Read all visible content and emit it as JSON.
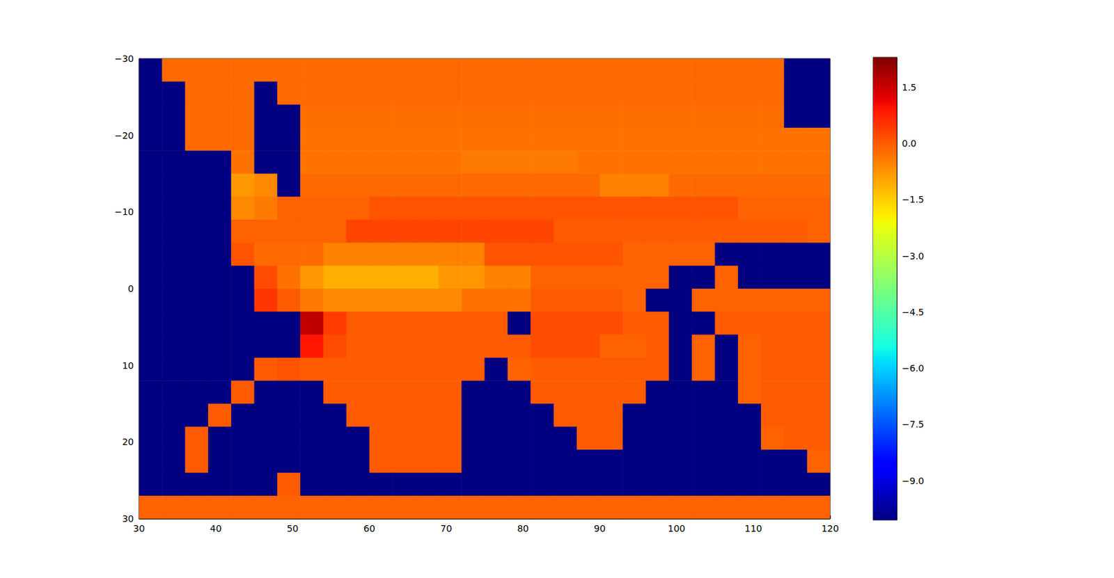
{
  "chart_data": {
    "type": "heatmap",
    "x": [
      31.5,
      34.5,
      37.5,
      40.5,
      43.5,
      46.5,
      49.5,
      52.5,
      55.5,
      58.5,
      61.5,
      64.5,
      67.5,
      70.5,
      73.5,
      76.5,
      79.5,
      82.5,
      85.5,
      88.5,
      91.5,
      94.5,
      97.5,
      100.5,
      103.5,
      106.5,
      109.5,
      112.5,
      115.5,
      118.5
    ],
    "y": [
      -28.5,
      -25.5,
      -22.5,
      -19.5,
      -16.5,
      -13.5,
      -10.5,
      -7.5,
      -4.5,
      -1.5,
      1.5,
      4.5,
      7.5,
      10.5,
      13.5,
      16.5,
      19.5,
      22.5,
      25.5,
      28.5
    ],
    "values": [
      [
        -10.05,
        -0.2,
        -0.2,
        -0.2,
        -0.2,
        -0.2,
        -0.2,
        -0.2,
        -0.2,
        -0.2,
        -0.2,
        -0.2,
        -0.2,
        -0.2,
        -0.2,
        -0.2,
        -0.2,
        -0.2,
        -0.2,
        -0.2,
        -0.2,
        -0.2,
        -0.2,
        -0.2,
        -0.2,
        -0.2,
        -0.2,
        -0.2,
        -10.05,
        -10.05
      ],
      [
        -10.05,
        -10.05,
        -0.2,
        -0.2,
        -0.2,
        -10.05,
        -0.2,
        -0.2,
        -0.2,
        -0.2,
        -0.2,
        -0.2,
        -0.2,
        -0.2,
        -0.2,
        -0.2,
        -0.2,
        -0.2,
        -0.2,
        -0.2,
        -0.2,
        -0.2,
        -0.2,
        -0.2,
        -0.2,
        -0.2,
        -0.2,
        -0.2,
        -10.05,
        -10.05
      ],
      [
        -10.05,
        -10.05,
        -0.2,
        -0.2,
        -0.2,
        -10.05,
        -10.05,
        -0.25,
        -0.25,
        -0.25,
        -0.25,
        -0.25,
        -0.25,
        -0.25,
        -0.25,
        -0.25,
        -0.25,
        -0.25,
        -0.25,
        -0.25,
        -0.25,
        -0.25,
        -0.25,
        -0.25,
        -0.25,
        -0.25,
        -0.25,
        -0.25,
        -10.05,
        -10.05
      ],
      [
        -10.05,
        -10.05,
        -0.2,
        -0.2,
        -0.2,
        -10.05,
        -10.05,
        -0.3,
        -0.3,
        -0.3,
        -0.3,
        -0.3,
        -0.3,
        -0.3,
        -0.3,
        -0.3,
        -0.3,
        -0.3,
        -0.3,
        -0.3,
        -0.3,
        -0.3,
        -0.3,
        -0.3,
        -0.3,
        -0.3,
        -0.3,
        -0.3,
        -0.3,
        -0.3
      ],
      [
        -10.05,
        -10.05,
        -10.05,
        -10.05,
        -0.3,
        -10.05,
        -10.05,
        -0.3,
        -0.3,
        -0.3,
        -0.3,
        -0.3,
        -0.3,
        -0.3,
        -0.4,
        -0.4,
        -0.4,
        -0.4,
        -0.4,
        -0.3,
        -0.3,
        -0.3,
        -0.3,
        -0.3,
        -0.3,
        -0.3,
        -0.3,
        -0.3,
        -0.3,
        -0.3
      ],
      [
        -10.05,
        -10.05,
        -10.05,
        -10.05,
        -0.8,
        -0.6,
        -10.05,
        -0.2,
        -0.2,
        -0.2,
        -0.2,
        -0.2,
        -0.2,
        -0.2,
        -0.2,
        -0.2,
        -0.2,
        -0.2,
        -0.2,
        -0.2,
        -0.5,
        -0.5,
        -0.5,
        -0.2,
        -0.2,
        -0.2,
        -0.2,
        -0.2,
        -0.2,
        -0.2
      ],
      [
        -10.05,
        -10.05,
        -10.05,
        -10.05,
        -0.6,
        -0.4,
        -0.1,
        -0.1,
        -0.1,
        -0.1,
        0.1,
        0.1,
        0.1,
        0.1,
        0.1,
        0.1,
        0.1,
        0.1,
        0.1,
        0.1,
        0.1,
        0.1,
        0.1,
        0.1,
        0.1,
        0.1,
        -0.1,
        -0.1,
        -0.1,
        -0.1
      ],
      [
        -10.05,
        -10.05,
        -10.05,
        -10.05,
        -0.1,
        -0.1,
        -0.1,
        -0.1,
        -0.1,
        0.3,
        0.3,
        0.3,
        0.3,
        0.3,
        0.3,
        0.3,
        0.3,
        0.3,
        0,
        0,
        0,
        0,
        0,
        0,
        0,
        0,
        0,
        0,
        0,
        -0.1
      ],
      [
        -10.05,
        -10.05,
        -10.05,
        -10.05,
        0.1,
        -0.2,
        -0.2,
        -0.2,
        -0.5,
        -0.5,
        -0.5,
        -0.5,
        -0.5,
        -0.5,
        -0.5,
        0.1,
        0.1,
        0.1,
        0.1,
        0.1,
        0.1,
        -0.1,
        -0.1,
        -0.1,
        -0.1,
        -10.05,
        -10.05,
        -10.05,
        -10.05,
        -10.05
      ],
      [
        -10.05,
        -10.05,
        -10.05,
        -10.05,
        -10.05,
        0.2,
        -0.3,
        -0.8,
        -1.1,
        -1.1,
        -1.1,
        -1.1,
        -1.1,
        -0.8,
        -0.8,
        -0.5,
        -0.5,
        -0.1,
        -0.1,
        -0.1,
        -0.1,
        -0.1,
        -0.1,
        -10.05,
        -10.05,
        -0.1,
        -10.05,
        -10.05,
        -10.05,
        -10.05
      ],
      [
        -10.05,
        -10.05,
        -10.05,
        -10.05,
        -10.05,
        0.5,
        0,
        -0.4,
        -0.6,
        -0.6,
        -0.6,
        -0.6,
        -0.6,
        -0.6,
        -0.3,
        -0.3,
        -0.3,
        0,
        0,
        0,
        0,
        -0.1,
        -10.05,
        -10.05,
        -0.1,
        -0.1,
        -0.1,
        -0.1,
        -0.1,
        -0.1
      ],
      [
        -10.05,
        -10.05,
        -10.05,
        -10.05,
        -10.05,
        -10.05,
        -10.05,
        1.6,
        0.4,
        0,
        0,
        0,
        0,
        0,
        0,
        0,
        -10.05,
        0.2,
        0.2,
        0.2,
        0.2,
        0,
        0,
        -10.05,
        -10.05,
        0,
        0,
        0,
        0,
        0
      ],
      [
        -10.05,
        -10.05,
        -10.05,
        -10.05,
        -10.05,
        -10.05,
        -10.05,
        0.9,
        0.2,
        0,
        0,
        0,
        0,
        0,
        0,
        0,
        0,
        0.2,
        0.2,
        0.2,
        -0.1,
        -0.1,
        0,
        -10.05,
        -0.1,
        -10.05,
        -0.1,
        0,
        0,
        0
      ],
      [
        -10.05,
        -10.05,
        -10.05,
        -10.05,
        -10.05,
        0,
        0.1,
        0,
        0,
        0,
        0,
        0,
        0,
        0,
        0,
        -10.05,
        -0.1,
        0,
        0,
        0,
        0,
        0,
        0,
        -10.05,
        -0.1,
        -10.05,
        -0.1,
        0,
        0,
        0
      ],
      [
        -10.05,
        -10.05,
        -10.05,
        -10.05,
        0,
        -10.05,
        -10.05,
        -10.05,
        0,
        0,
        0,
        0,
        0,
        0,
        -10.05,
        -10.05,
        -10.05,
        0,
        0,
        0,
        0,
        0,
        -10.05,
        -10.05,
        -10.05,
        -10.05,
        -0.1,
        0,
        0,
        0
      ],
      [
        -10.05,
        -10.05,
        -10.05,
        0,
        -10.05,
        -10.05,
        -10.05,
        -10.05,
        -10.05,
        0,
        0,
        0,
        0,
        0,
        -10.05,
        -10.05,
        -10.05,
        -10.05,
        0,
        0,
        0,
        -10.05,
        -10.05,
        -10.05,
        -10.05,
        -10.05,
        -10.05,
        0,
        0,
        0
      ],
      [
        -10.05,
        -10.05,
        0,
        -10.05,
        -10.05,
        -10.05,
        -10.05,
        -10.05,
        -10.05,
        -10.05,
        0,
        0,
        0,
        0,
        -10.05,
        -10.05,
        -10.05,
        -10.05,
        -10.05,
        0,
        0,
        -10.05,
        -10.05,
        -10.05,
        -10.05,
        -10.05,
        -10.05,
        -0.1,
        0,
        0
      ],
      [
        -10.05,
        -10.05,
        0,
        -10.05,
        -10.05,
        -10.05,
        -10.05,
        -10.05,
        -10.05,
        -10.05,
        0,
        0,
        0,
        0,
        -10.05,
        -10.05,
        -10.05,
        -10.05,
        -10.05,
        -10.05,
        -10.05,
        -10.05,
        -10.05,
        -10.05,
        -10.05,
        -10.05,
        -10.05,
        -10.05,
        -10.05,
        -0.1
      ],
      [
        -10.05,
        -10.05,
        -10.05,
        -10.05,
        -10.05,
        -10.05,
        0,
        -10.05,
        -10.05,
        -10.05,
        -10.05,
        -10.05,
        -10.05,
        -10.05,
        -10.05,
        -10.05,
        -10.05,
        -10.05,
        -10.05,
        -10.05,
        -10.05,
        -10.05,
        -10.05,
        -10.05,
        -10.05,
        -10.05,
        -10.05,
        -10.05,
        -10.05,
        -10.05
      ],
      [
        -0.1,
        -0.1,
        -0.1,
        -0.1,
        -0.1,
        -0.1,
        -0.1,
        -0.1,
        -0.1,
        -0.1,
        -0.1,
        -0.1,
        -0.1,
        -0.1,
        -0.1,
        -0.1,
        -0.1,
        -0.1,
        -0.1,
        -0.1,
        -0.1,
        -0.1,
        -0.1,
        -0.1,
        -0.1,
        -0.1,
        -0.1,
        -0.1,
        -0.1,
        -0.1
      ]
    ],
    "xlim": [
      30,
      120
    ],
    "xticks": [
      30,
      40,
      50,
      60,
      70,
      80,
      90,
      100,
      110,
      120
    ],
    "ylim": [
      30,
      -30
    ],
    "yticks": [
      {
        "value": -30,
        "label": "−30"
      },
      {
        "value": -20,
        "label": "−20"
      },
      {
        "value": -10,
        "label": "−10"
      },
      0,
      10,
      20,
      30
    ],
    "colorbar": {
      "range": [
        -10.05,
        2.3
      ],
      "ticks": [
        1.5,
        {
          "value": 0,
          "label": "0.0"
        },
        {
          "value": -1.5,
          "label": "−1.5"
        },
        {
          "value": -3,
          "label": "−3.0"
        },
        {
          "value": -4.5,
          "label": "−4.5"
        },
        {
          "value": -6,
          "label": "−6.0"
        },
        {
          "value": -7.5,
          "label": "−7.5"
        },
        {
          "value": -9,
          "label": "−9.0"
        }
      ]
    }
  }
}
